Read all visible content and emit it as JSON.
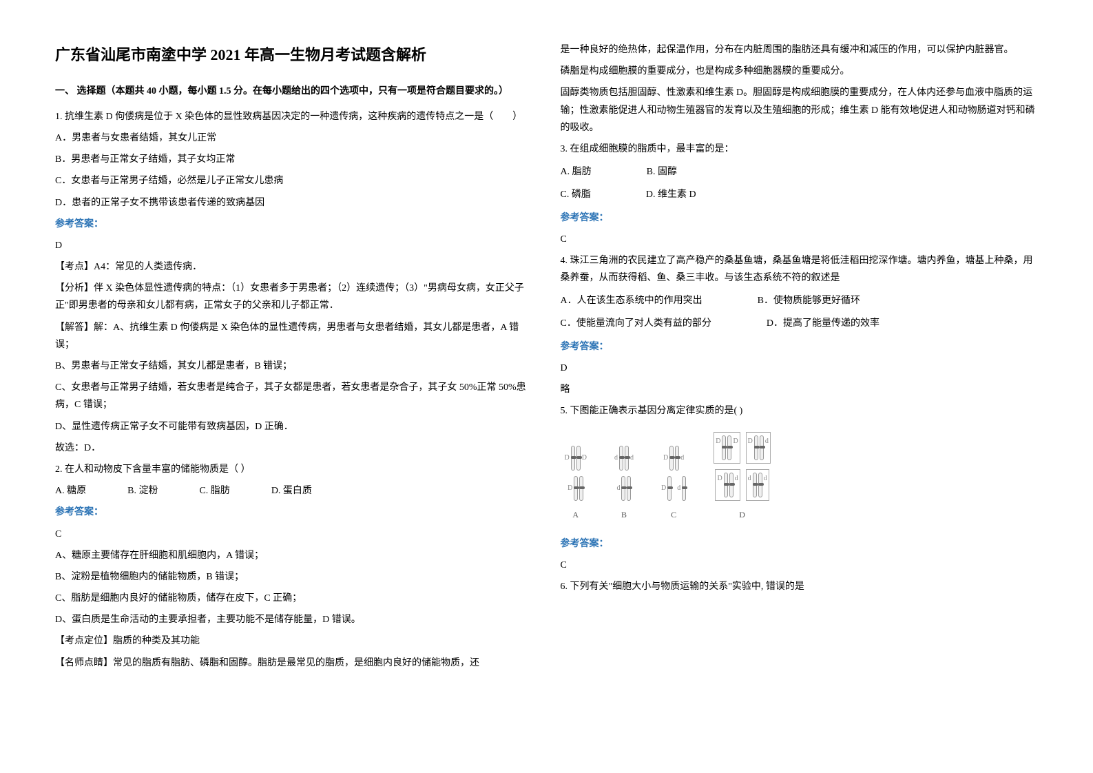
{
  "title": "广东省汕尾市南塗中学 2021 年高一生物月考试题含解析",
  "section1_head": "一、 选择题（本题共 40 小题，每小题 1.5 分。在每小题给出的四个选项中，只有一项是符合题目要求的。）",
  "q1": {
    "stem": "1. 抗维生素 D 佝偻病是位于 X 染色体的显性致病基因决定的一种遗传病，这种疾病的遗传特点之一是（　　）",
    "a": "A．男患者与女患者结婚，其女儿正常",
    "b": "B．男患者与正常女子结婚，其子女均正常",
    "c": "C．女患者与正常男子结婚，必然是儿子正常女儿患病",
    "d": "D．患者的正常子女不携带该患者传递的致病基因",
    "ans_label": "参考答案：",
    "ans": "D",
    "kaodian": "【考点】A4：常见的人类遗传病．",
    "fenxi": "【分析】伴 X 染色体显性遗传病的特点：（1）女患者多于男患者；（2）连续遗传；（3）\"男病母女病，女正父子正\"即男患者的母亲和女儿都有病，正常女子的父亲和儿子都正常．",
    "jieda1": "【解答】解：A、抗维生素 D 佝偻病是 X 染色体的显性遗传病，男患者与女患者结婚，其女儿都是患者，A 错误；",
    "jieda2": "B、男患者与正常女子结婚，其女儿都是患者，B 错误；",
    "jieda3": "C、女患者与正常男子结婚，若女患者是纯合子，其子女都是患者，若女患者是杂合子，其子女 50%正常 50%患病，C 错误；",
    "jieda4": "D、显性遗传病正常子女不可能带有致病基因，D 正确．",
    "jieda5": "故选：D．"
  },
  "q2": {
    "stem": "2. 在人和动物皮下含量丰富的储能物质是（ ）",
    "a": "A. 糖原",
    "b": "B. 淀粉",
    "c": "C. 脂肪",
    "d": "D. 蛋白质",
    "ans_label": "参考答案：",
    "ans": "C",
    "e1": "A、糖原主要储存在肝细胞和肌细胞内，A 错误；",
    "e2": "B、淀粉是植物细胞内的储能物质，B 错误；",
    "e3": "C、脂肪是细胞内良好的储能物质，储存在皮下，C 正确；",
    "e4": "D、蛋白质是生命活动的主要承担者，主要功能不是储存能量，D 错误。",
    "kd": "【考点定位】脂质的种类及其功能",
    "ms": "【名师点睛】常见的脂质有脂肪、磷脂和固醇。脂肪是最常见的脂质，是细胞内良好的储能物质，还"
  },
  "col2": {
    "p1": "是一种良好的绝热体，起保温作用，分布在内脏周围的脂肪还具有缓冲和减压的作用，可以保护内脏器官。",
    "p2": "磷脂是构成细胞膜的重要成分，也是构成多种细胞器膜的重要成分。",
    "p3": "固醇类物质包括胆固醇、性激素和维生素 D。胆固醇是构成细胞膜的重要成分，在人体内还参与血液中脂质的运输；性激素能促进人和动物生殖器官的发育以及生殖细胞的形成；维生素 D 能有效地促进人和动物肠道对钙和磷的吸收。"
  },
  "q3": {
    "stem": "3. 在组成细胞膜的脂质中，最丰富的是：",
    "a": "A. 脂肪",
    "b": "B. 固醇",
    "c": "C. 磷脂",
    "d": "D. 维生素 D",
    "ans_label": "参考答案：",
    "ans": "C"
  },
  "q4": {
    "stem": "4. 珠江三角洲的农民建立了高产稳产的桑基鱼塘，桑基鱼塘是将低洼稻田挖深作塘。塘内养鱼，塘基上种桑，用桑养蚕，从而获得稻、鱼、桑三丰收。与该生态系统不符的叙述是",
    "a": "A．人在该生态系统中的作用突出",
    "b": "B．使物质能够更好循环",
    "c": "C．使能量流向了对人类有益的部分",
    "d": "D．提高了能量传递的效率",
    "ans_label": "参考答案：",
    "ans": "D",
    "lue": "略"
  },
  "q5": {
    "stem": "5. 下图能正确表示基因分离定律实质的是(   )",
    "labelA": "A",
    "labelB": "B",
    "labelC": "C",
    "labelD": "D",
    "ans_label": "参考答案：",
    "ans": "C"
  },
  "q6": {
    "stem": "6. 下列有关\"细胞大小与物质运输的关系\"实验中, 错误的是"
  },
  "alleles": {
    "D": "D",
    "d": "d"
  }
}
